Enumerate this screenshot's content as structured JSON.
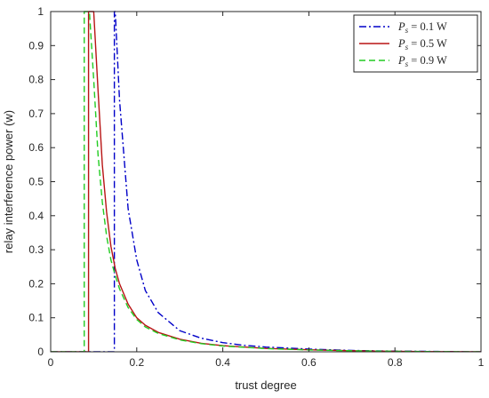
{
  "chart_data": {
    "type": "line",
    "title": "",
    "xlabel": "trust degree",
    "ylabel": "relay interference power (w)",
    "xlim": [
      0,
      1
    ],
    "ylim": [
      0,
      1
    ],
    "x_ticks": [
      "0",
      "0.2",
      "0.4",
      "0.6",
      "0.8",
      "1"
    ],
    "y_ticks": [
      "0",
      "0.1",
      "0.2",
      "0.3",
      "0.4",
      "0.5",
      "0.6",
      "0.7",
      "0.8",
      "0.9",
      "1"
    ],
    "grid": false,
    "legend_position": "top-right",
    "series": [
      {
        "name": "P_s = 0.1 W",
        "legend_var": "P",
        "legend_sub": "s",
        "legend_rest": " = 0.1 W",
        "color": "#0000c8",
        "dash": "dash-dot",
        "x": [
          0,
          0.148,
          0.148,
          0.15,
          0.16,
          0.18,
          0.2,
          0.22,
          0.25,
          0.3,
          0.35,
          0.4,
          0.45,
          0.5,
          0.6,
          0.7,
          0.8,
          0.9,
          1.0
        ],
        "y": [
          0,
          0,
          1.0,
          1.0,
          0.74,
          0.42,
          0.27,
          0.18,
          0.115,
          0.062,
          0.04,
          0.027,
          0.019,
          0.014,
          0.008,
          0.004,
          0.002,
          0.001,
          0
        ]
      },
      {
        "name": "P_s = 0.5 W",
        "legend_var": "P",
        "legend_sub": "s",
        "legend_rest": " = 0.5 W",
        "color": "#b81414",
        "dash": "solid",
        "x": [
          0,
          0.088,
          0.088,
          0.1,
          0.11,
          0.12,
          0.13,
          0.14,
          0.15,
          0.16,
          0.18,
          0.2,
          0.22,
          0.25,
          0.3,
          0.35,
          0.4,
          0.5,
          0.6,
          0.7,
          0.8,
          0.9,
          1.0
        ],
        "y": [
          0,
          0,
          1.0,
          1.0,
          0.77,
          0.55,
          0.41,
          0.31,
          0.245,
          0.2,
          0.14,
          0.1,
          0.078,
          0.057,
          0.037,
          0.025,
          0.018,
          0.01,
          0.006,
          0.003,
          0.0015,
          0.0005,
          0
        ]
      },
      {
        "name": "P_s = 0.9 W",
        "legend_var": "P",
        "legend_sub": "s",
        "legend_rest": " = 0.9 W",
        "color": "#22cc22",
        "dash": "dashed",
        "x": [
          0,
          0.078,
          0.078,
          0.09,
          0.1,
          0.11,
          0.12,
          0.13,
          0.14,
          0.15,
          0.16,
          0.18,
          0.2,
          0.22,
          0.25,
          0.3,
          0.35,
          0.4,
          0.5,
          0.6,
          0.7,
          0.8,
          0.9,
          1.0
        ],
        "y": [
          0,
          0,
          1.0,
          1.0,
          0.8,
          0.58,
          0.44,
          0.34,
          0.27,
          0.225,
          0.185,
          0.13,
          0.095,
          0.073,
          0.054,
          0.035,
          0.024,
          0.017,
          0.0095,
          0.0055,
          0.003,
          0.0015,
          0.0005,
          0
        ]
      }
    ]
  }
}
